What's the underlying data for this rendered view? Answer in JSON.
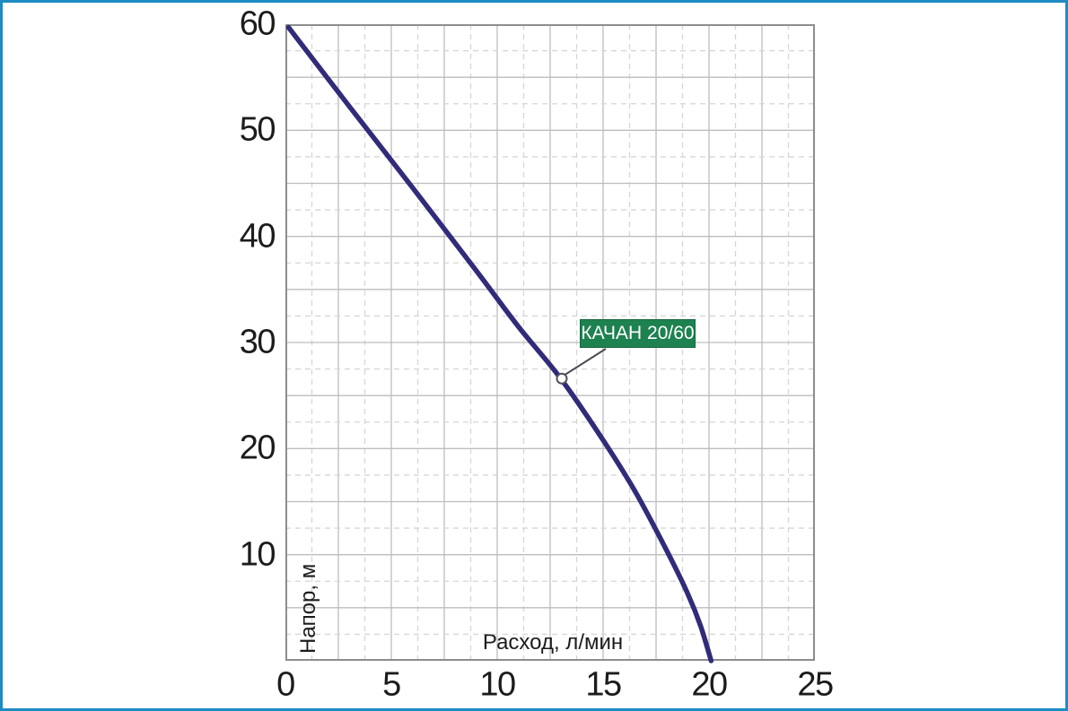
{
  "frame": {
    "border_color": "#1e8bc4",
    "background": "#ffffff"
  },
  "chart_data": {
    "type": "line",
    "title": "",
    "xlabel": "Расход, л/мин",
    "ylabel": "Напор, м",
    "xlim": [
      0,
      25
    ],
    "ylim": [
      0,
      60
    ],
    "x_ticks": [
      0,
      5,
      10,
      15,
      20,
      25
    ],
    "y_ticks": [
      10,
      20,
      30,
      40,
      50,
      60
    ],
    "grid": {
      "solid_step_x": 2.5,
      "dashed_step_x": 1.25,
      "solid_step_y": 5,
      "dashed_step_y": 2.5,
      "solid_color": "#bdbdbd",
      "dashed_color": "#d6d6d6",
      "border_color": "#8d8d8d"
    },
    "series": [
      {
        "name": "КАЧАН 20/60",
        "color": "#312b79",
        "points": [
          [
            0.15,
            59.7
          ],
          [
            3,
            52.3
          ],
          [
            6,
            44.6
          ],
          [
            9,
            36.8
          ],
          [
            11,
            31.5
          ],
          [
            13,
            26.6
          ],
          [
            15,
            20.8
          ],
          [
            16.5,
            16.0
          ],
          [
            18,
            10.4
          ],
          [
            19,
            6.3
          ],
          [
            19.6,
            3.3
          ],
          [
            20.1,
            0
          ]
        ]
      }
    ],
    "annotation": {
      "label": "КАЧАН 20/60",
      "point": [
        13.05,
        26.6
      ],
      "box_color": "#1e8150",
      "text_color": "#ffffff",
      "leader_color": "#4a4a55",
      "marker_fill": "#ffffff",
      "marker_stroke": "#50505c"
    },
    "legend": "none"
  }
}
